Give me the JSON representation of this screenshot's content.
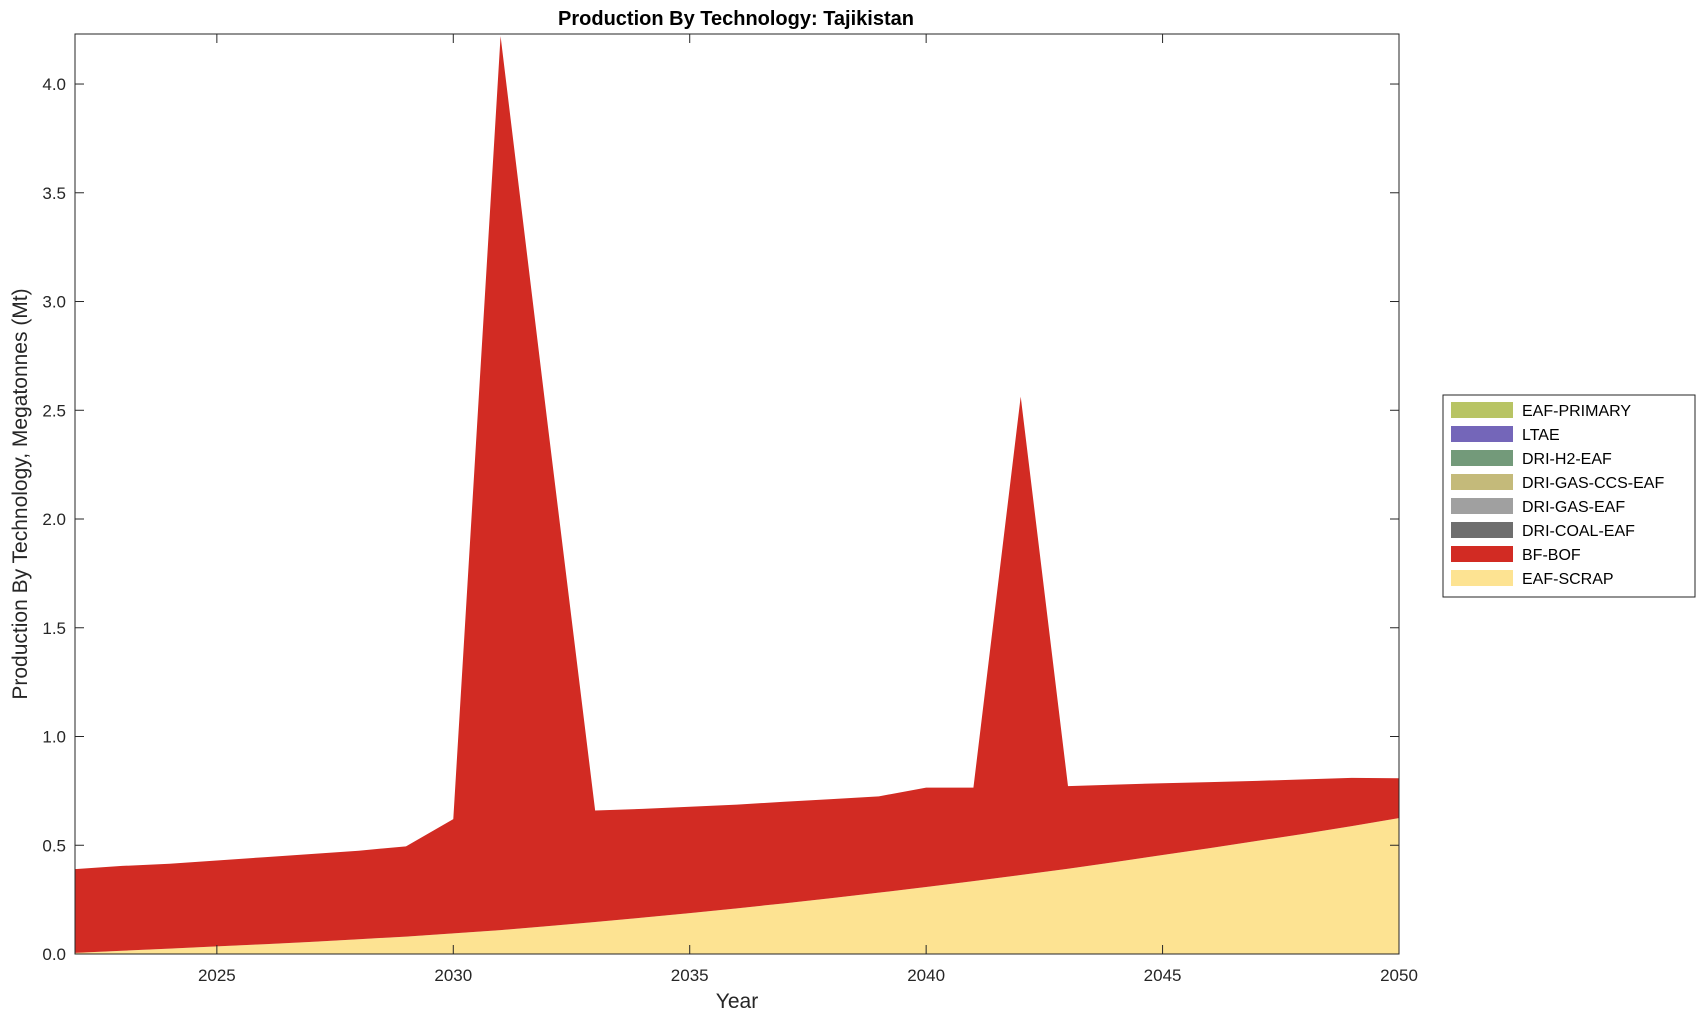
{
  "chart_data": {
    "type": "area",
    "stacked": true,
    "title": "Production By Technology: Tajikistan",
    "xlabel": "Year",
    "ylabel": "Production By Technology, Megatonnes (Mt)",
    "xlim": [
      2022,
      2050
    ],
    "ylim": [
      0,
      4.23
    ],
    "xticks": [
      2025,
      2030,
      2035,
      2040,
      2045,
      2050
    ],
    "yticks": [
      0.0,
      0.5,
      1.0,
      1.5,
      2.0,
      2.5,
      3.0,
      3.5,
      4.0
    ],
    "ytick_labels": [
      "0.0",
      "0.5",
      "1.0",
      "1.5",
      "2.0",
      "2.5",
      "3.0",
      "3.5",
      "4.0"
    ],
    "grid": false,
    "legend_position": "right",
    "x": [
      2022,
      2023,
      2024,
      2025,
      2026,
      2027,
      2028,
      2029,
      2030,
      2031,
      2032,
      2033,
      2034,
      2035,
      2036,
      2037,
      2038,
      2039,
      2040,
      2041,
      2042,
      2043,
      2044,
      2045,
      2046,
      2047,
      2048,
      2049,
      2050
    ],
    "series": [
      {
        "name": "EAF-SCRAP",
        "color": "#FDE392",
        "values": [
          0.005,
          0.015,
          0.025,
          0.035,
          0.045,
          0.056,
          0.068,
          0.08,
          0.095,
          0.11,
          0.128,
          0.147,
          0.167,
          0.188,
          0.21,
          0.233,
          0.257,
          0.282,
          0.308,
          0.335,
          0.363,
          0.392,
          0.423,
          0.455,
          0.487,
          0.52,
          0.553,
          0.588,
          0.625
        ]
      },
      {
        "name": "BF-BOF",
        "color": "#D22B23",
        "values": [
          0.385,
          0.39,
          0.39,
          0.395,
          0.4,
          0.404,
          0.407,
          0.415,
          0.525,
          4.11,
          2.3,
          0.513,
          0.5,
          0.489,
          0.477,
          0.467,
          0.455,
          0.443,
          0.457,
          0.43,
          2.2,
          0.38,
          0.356,
          0.33,
          0.303,
          0.276,
          0.25,
          0.222,
          0.183
        ]
      },
      {
        "name": "DRI-COAL-EAF",
        "color": "#6E6E6E",
        "values": [
          0,
          0,
          0,
          0,
          0,
          0,
          0,
          0,
          0,
          0,
          0,
          0,
          0,
          0,
          0,
          0,
          0,
          0,
          0,
          0,
          0,
          0,
          0,
          0,
          0,
          0,
          0,
          0,
          0
        ]
      },
      {
        "name": "DRI-GAS-EAF",
        "color": "#A0A0A0",
        "values": [
          0,
          0,
          0,
          0,
          0,
          0,
          0,
          0,
          0,
          0,
          0,
          0,
          0,
          0,
          0,
          0,
          0,
          0,
          0,
          0,
          0,
          0,
          0,
          0,
          0,
          0,
          0,
          0,
          0
        ]
      },
      {
        "name": "DRI-GAS-CCS-EAF",
        "color": "#C4BA7A",
        "values": [
          0,
          0,
          0,
          0,
          0,
          0,
          0,
          0,
          0,
          0,
          0,
          0,
          0,
          0,
          0,
          0,
          0,
          0,
          0,
          0,
          0,
          0,
          0,
          0,
          0,
          0,
          0,
          0,
          0
        ]
      },
      {
        "name": "DRI-H2-EAF",
        "color": "#739A7A",
        "values": [
          0,
          0,
          0,
          0,
          0,
          0,
          0,
          0,
          0,
          0,
          0,
          0,
          0,
          0,
          0,
          0,
          0,
          0,
          0,
          0,
          0,
          0,
          0,
          0,
          0,
          0,
          0,
          0,
          0
        ]
      },
      {
        "name": "LTAE",
        "color": "#7466B9",
        "values": [
          0,
          0,
          0,
          0,
          0,
          0,
          0,
          0,
          0,
          0,
          0,
          0,
          0,
          0,
          0,
          0,
          0,
          0,
          0,
          0,
          0,
          0,
          0,
          0,
          0,
          0,
          0,
          0,
          0
        ]
      },
      {
        "name": "EAF-PRIMARY",
        "color": "#B8C464",
        "values": [
          0,
          0,
          0,
          0,
          0,
          0,
          0,
          0,
          0,
          0,
          0,
          0,
          0,
          0,
          0,
          0,
          0,
          0,
          0,
          0,
          0,
          0,
          0,
          0,
          0,
          0,
          0,
          0,
          0
        ]
      }
    ],
    "legend_order": [
      "EAF-PRIMARY",
      "LTAE",
      "DRI-H2-EAF",
      "DRI-GAS-CCS-EAF",
      "DRI-GAS-EAF",
      "DRI-COAL-EAF",
      "BF-BOF",
      "EAF-SCRAP"
    ]
  }
}
